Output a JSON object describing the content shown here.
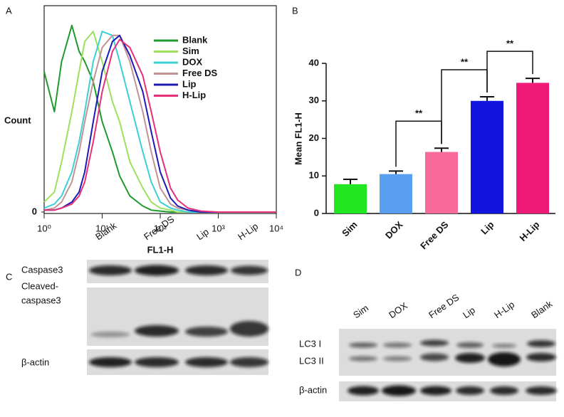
{
  "chart_data": [
    {
      "type": "line",
      "panel": "A",
      "xlabel": "FL1-H",
      "ylabel": "Count",
      "xscale": "log",
      "xlim": [
        1,
        10000
      ],
      "xticks": [
        {
          "value": 1,
          "label": "10⁰"
        },
        {
          "value": 10,
          "label": "10¹"
        },
        {
          "value": 100,
          "label": "10²"
        },
        {
          "value": 1000,
          "label": "10³"
        },
        {
          "value": 10000,
          "label": "10⁴"
        }
      ],
      "ylim": [
        0,
        100
      ],
      "yticks": [
        0
      ],
      "x": [
        1,
        1.5,
        2,
        3,
        4,
        5,
        7,
        10,
        15,
        20,
        30,
        50,
        70,
        100,
        150,
        200,
        300,
        500,
        1000,
        10000
      ],
      "series": [
        {
          "name": "Blank",
          "color": "#1f9a2c",
          "values": [
            70,
            50,
            75,
            93,
            80,
            75,
            65,
            45,
            30,
            18,
            8,
            3,
            1,
            0.5,
            0,
            0,
            0,
            0,
            0,
            0
          ]
        },
        {
          "name": "Sim",
          "color": "#9ee05c",
          "values": [
            5,
            10,
            25,
            50,
            70,
            85,
            90,
            75,
            55,
            45,
            25,
            12,
            5,
            2,
            1,
            0,
            0,
            0,
            0,
            0
          ]
        },
        {
          "name": "DOX",
          "color": "#3ccfd6",
          "values": [
            2,
            4,
            8,
            20,
            35,
            50,
            75,
            90,
            88,
            75,
            55,
            30,
            15,
            5,
            2,
            1,
            0,
            0,
            0,
            0
          ]
        },
        {
          "name": "Free DS",
          "color": "#c39292",
          "values": [
            1,
            2,
            5,
            15,
            30,
            45,
            65,
            82,
            88,
            88,
            75,
            50,
            30,
            12,
            4,
            2,
            1,
            0,
            0,
            0
          ]
        },
        {
          "name": "Lip",
          "color": "#1c1cb4",
          "values": [
            1,
            1,
            2,
            5,
            10,
            20,
            45,
            70,
            85,
            88,
            78,
            60,
            40,
            20,
            7,
            3,
            1,
            0,
            0,
            0
          ]
        },
        {
          "name": "H-Lip",
          "color": "#e8307a",
          "values": [
            1,
            1,
            2,
            4,
            8,
            15,
            35,
            60,
            80,
            86,
            82,
            68,
            50,
            30,
            12,
            6,
            2,
            0.5,
            0,
            0
          ]
        }
      ]
    },
    {
      "type": "bar",
      "panel": "B",
      "ylabel": "Mean  FL1-H",
      "categories": [
        "Sim",
        "DOX",
        "Free DS",
        "Lip",
        "H-Lip"
      ],
      "values": [
        7.8,
        10.5,
        16.4,
        30,
        34.8
      ],
      "errors": [
        1.3,
        0.8,
        1.0,
        1.1,
        1.2
      ],
      "colors": [
        "#22e622",
        "#5b9ff0",
        "#f76a9a",
        "#1414e0",
        "#ef1a78"
      ],
      "ylim": [
        0,
        40
      ],
      "yticks": [
        0,
        10,
        20,
        30,
        40
      ],
      "annotations": [
        "**",
        "**",
        "**"
      ]
    }
  ],
  "blots": [
    {
      "panel": "C",
      "lanes": [
        "Blank",
        "Free DS",
        "Lip",
        "H-Lip"
      ],
      "rows": [
        [
          "Caspase3"
        ],
        [
          "Cleaved-",
          "caspase3"
        ],
        [
          "β-actin"
        ]
      ]
    },
    {
      "panel": "D",
      "lanes": [
        "Sim",
        "DOX",
        "Free DS",
        "Lip",
        "H-Lip",
        "Blank"
      ],
      "rows": [
        [
          "LC3 I"
        ],
        [
          "LC3 II"
        ],
        [
          "β-actin"
        ]
      ]
    }
  ]
}
